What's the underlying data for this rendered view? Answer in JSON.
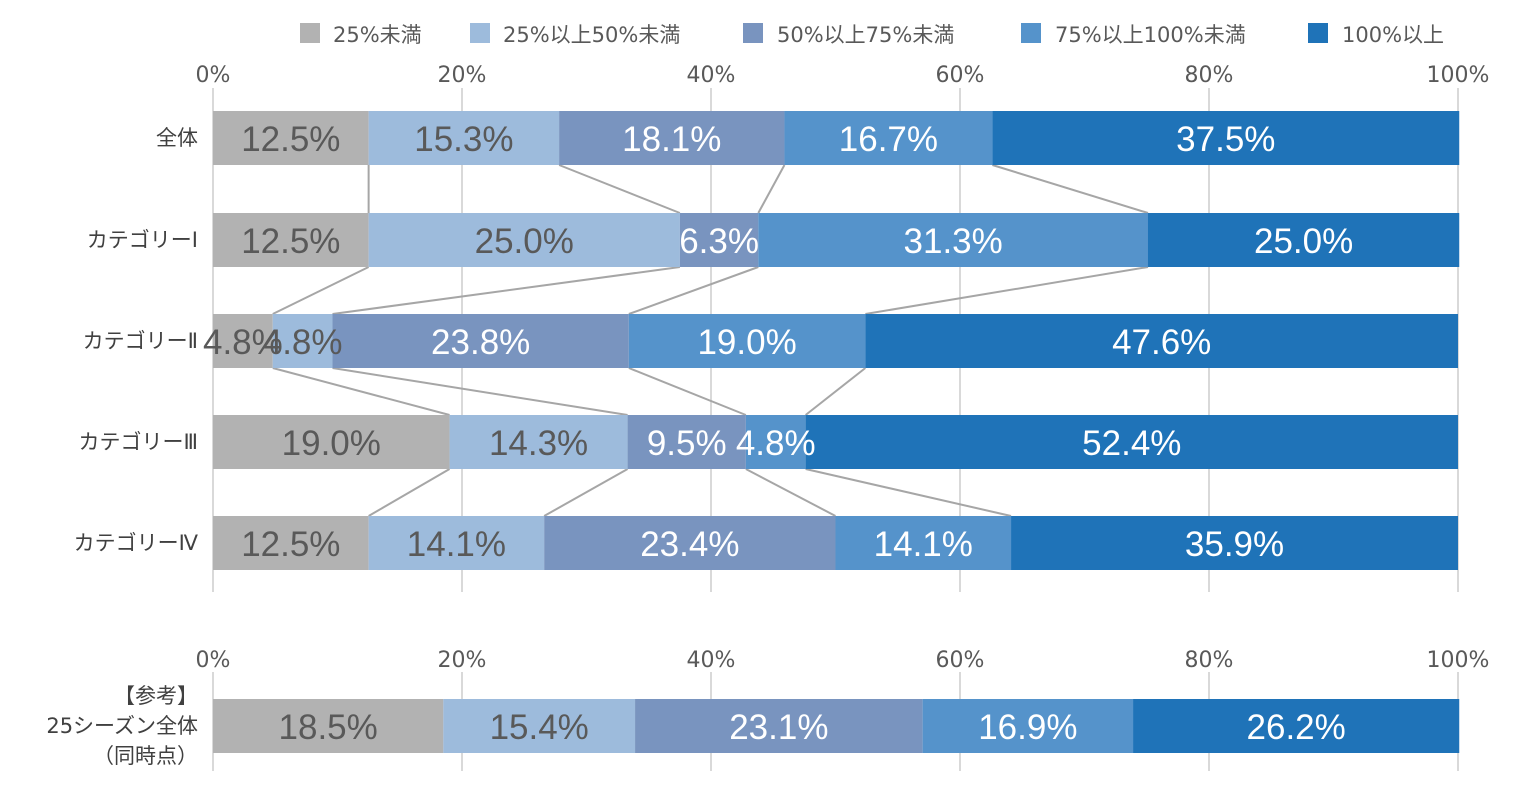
{
  "chart_data": {
    "type": "bar",
    "orientation": "horizontal",
    "stacked": "percent",
    "legend_position": "top",
    "series": [
      {
        "name": "25%未満",
        "color": "#b2b2b2"
      },
      {
        "name": "25%以上50%未満",
        "color": "#9dbbdc"
      },
      {
        "name": "50%以上75%未満",
        "color": "#7994bf"
      },
      {
        "name": "75%以上100%未満",
        "color": "#5593cb"
      },
      {
        "name": "100%以上",
        "color": "#1f73b8"
      }
    ],
    "x_ticks": [
      "0%",
      "20%",
      "40%",
      "60%",
      "80%",
      "100%"
    ],
    "xlim": [
      0,
      100
    ],
    "grid": true,
    "panels": [
      {
        "rows": [
          {
            "label": [
              "全体"
            ],
            "values": [
              12.5,
              15.3,
              18.1,
              16.7,
              37.5
            ],
            "labels": [
              "12.5%",
              "15.3%",
              "18.1%",
              "16.7%",
              "37.5%"
            ]
          },
          {
            "label": [
              "カテゴリーⅠ"
            ],
            "values": [
              12.5,
              25.0,
              6.3,
              31.3,
              25.0
            ],
            "labels": [
              "12.5%",
              "25.0%",
              "6.3%",
              "31.3%",
              "25.0%"
            ]
          },
          {
            "label": [
              "カテゴリーⅡ"
            ],
            "values": [
              4.8,
              4.8,
              23.8,
              19.0,
              47.6
            ],
            "labels": [
              "4.8%",
              "4.8%",
              "23.8%",
              "19.0%",
              "47.6%"
            ]
          },
          {
            "label": [
              "カテゴリーⅢ"
            ],
            "values": [
              19.0,
              14.3,
              9.5,
              4.8,
              52.4
            ],
            "labels": [
              "19.0%",
              "14.3%",
              "9.5%",
              "4.8%",
              "52.4%"
            ]
          },
          {
            "label": [
              "カテゴリーⅣ"
            ],
            "values": [
              12.5,
              14.1,
              23.4,
              14.1,
              35.9
            ],
            "labels": [
              "12.5%",
              "14.1%",
              "23.4%",
              "14.1%",
              "35.9%"
            ]
          }
        ]
      },
      {
        "rows": [
          {
            "label": [
              "【参考】",
              "25シーズン全体",
              "（同時点）"
            ],
            "values": [
              18.5,
              15.4,
              23.1,
              16.9,
              26.2
            ],
            "labels": [
              "18.5%",
              "15.4%",
              "23.1%",
              "16.9%",
              "26.2%"
            ]
          }
        ]
      }
    ],
    "label_colors": [
      "#595959",
      "#595959",
      "#ffffff",
      "#ffffff",
      "#ffffff"
    ],
    "connector_color": "#a6a6a6",
    "grid_color": "#d9d9d9"
  }
}
